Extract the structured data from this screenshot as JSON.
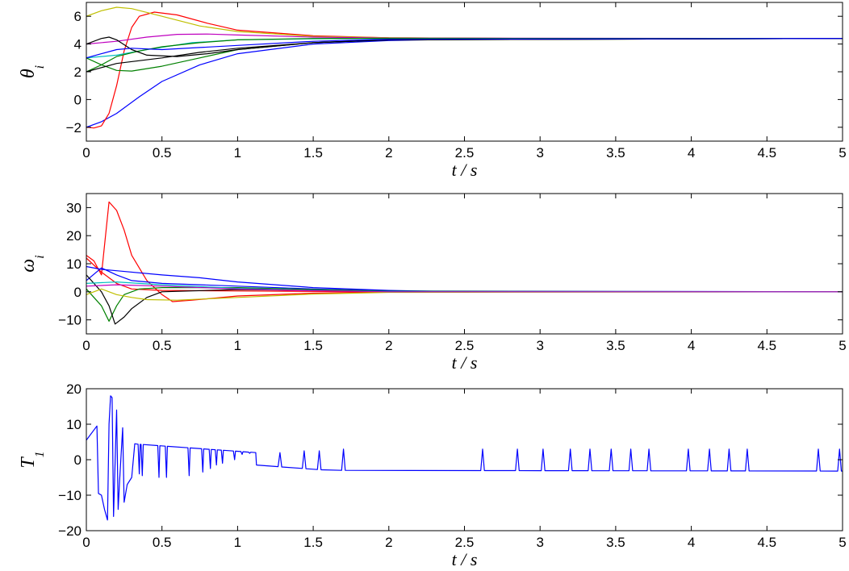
{
  "chart_data": [
    {
      "type": "line",
      "ylabel": "θ",
      "ylabel_subscript": "i",
      "xlabel": "t / s",
      "xlim": [
        0,
        5
      ],
      "ylim": [
        -3,
        7
      ],
      "xticks": [
        0,
        0.5,
        1,
        1.5,
        2,
        2.5,
        3,
        3.5,
        4,
        4.5,
        5
      ],
      "xticklabels": [
        "0",
        "0.5",
        "1",
        "1.5",
        "2",
        "2.5",
        "3",
        "3.5",
        "4",
        "4.5",
        "5"
      ],
      "yticks": [
        -2,
        0,
        2,
        4,
        6
      ],
      "yticklabels": [
        "−2",
        "0",
        "2",
        "4",
        "6"
      ],
      "grid": false,
      "series": [
        {
          "color": "#0000ff",
          "points": [
            [
              0,
              -2
            ],
            [
              0.1,
              -1.6
            ],
            [
              0.2,
              -1
            ],
            [
              0.35,
              0.2
            ],
            [
              0.5,
              1.3
            ],
            [
              0.75,
              2.5
            ],
            [
              1,
              3.3
            ],
            [
              1.5,
              4
            ],
            [
              2,
              4.25
            ],
            [
              2.5,
              4.35
            ],
            [
              3,
              4.38
            ],
            [
              5,
              4.4
            ]
          ]
        },
        {
          "color": "#ff0000",
          "points": [
            [
              0,
              -2
            ],
            [
              0.05,
              -2.05
            ],
            [
              0.1,
              -1.9
            ],
            [
              0.15,
              -1
            ],
            [
              0.2,
              1
            ],
            [
              0.25,
              3.5
            ],
            [
              0.3,
              5.2
            ],
            [
              0.35,
              6
            ],
            [
              0.45,
              6.3
            ],
            [
              0.6,
              6.1
            ],
            [
              0.8,
              5.5
            ],
            [
              1,
              5
            ],
            [
              1.5,
              4.6
            ],
            [
              2,
              4.45
            ],
            [
              3,
              4.4
            ],
            [
              5,
              4.4
            ]
          ]
        },
        {
          "color": "#bfbf00",
          "points": [
            [
              0,
              6
            ],
            [
              0.1,
              6.4
            ],
            [
              0.2,
              6.65
            ],
            [
              0.3,
              6.55
            ],
            [
              0.5,
              6
            ],
            [
              0.75,
              5.3
            ],
            [
              1,
              4.9
            ],
            [
              1.5,
              4.55
            ],
            [
              2,
              4.45
            ],
            [
              3,
              4.4
            ],
            [
              5,
              4.4
            ]
          ]
        },
        {
          "color": "#00bfbf",
          "points": [
            [
              0,
              3
            ],
            [
              0.2,
              3.2
            ],
            [
              0.4,
              3.6
            ],
            [
              0.7,
              4.1
            ],
            [
              1,
              4.3
            ],
            [
              1.5,
              4.38
            ],
            [
              2,
              4.4
            ],
            [
              5,
              4.4
            ]
          ]
        },
        {
          "color": "#bf00bf",
          "points": [
            [
              0,
              4
            ],
            [
              0.2,
              4.2
            ],
            [
              0.4,
              4.5
            ],
            [
              0.6,
              4.7
            ],
            [
              0.8,
              4.72
            ],
            [
              1,
              4.65
            ],
            [
              1.5,
              4.5
            ],
            [
              2,
              4.43
            ],
            [
              5,
              4.4
            ]
          ]
        },
        {
          "color": "#008000",
          "points": [
            [
              0,
              2
            ],
            [
              0.1,
              2.5
            ],
            [
              0.2,
              3.1
            ],
            [
              0.35,
              3.5
            ],
            [
              0.5,
              3.8
            ],
            [
              0.75,
              4.1
            ],
            [
              1,
              4.3
            ],
            [
              1.5,
              4.4
            ],
            [
              2,
              4.41
            ],
            [
              5,
              4.4
            ]
          ]
        },
        {
          "color": "#008000",
          "points": [
            [
              0,
              3
            ],
            [
              0.1,
              2.5
            ],
            [
              0.2,
              2.1
            ],
            [
              0.3,
              2.05
            ],
            [
              0.5,
              2.4
            ],
            [
              0.75,
              3
            ],
            [
              1,
              3.6
            ],
            [
              1.5,
              4.1
            ],
            [
              2,
              4.3
            ],
            [
              5,
              4.4
            ]
          ]
        },
        {
          "color": "#000000",
          "points": [
            [
              0,
              4
            ],
            [
              0.1,
              4.4
            ],
            [
              0.15,
              4.5
            ],
            [
              0.2,
              4.3
            ],
            [
              0.3,
              3.6
            ],
            [
              0.4,
              3.2
            ],
            [
              0.6,
              3.1
            ],
            [
              0.8,
              3.3
            ],
            [
              1,
              3.6
            ],
            [
              1.5,
              4.1
            ],
            [
              2,
              4.3
            ],
            [
              5,
              4.4
            ]
          ]
        },
        {
          "color": "#000000",
          "points": [
            [
              0,
              2
            ],
            [
              0.1,
              2.3
            ],
            [
              0.2,
              2.6
            ],
            [
              0.5,
              3
            ],
            [
              0.75,
              3.4
            ],
            [
              1,
              3.7
            ],
            [
              1.5,
              4.1
            ],
            [
              2,
              4.3
            ],
            [
              5,
              4.4
            ]
          ]
        },
        {
          "color": "#0000ff",
          "points": [
            [
              0,
              3
            ],
            [
              0.1,
              3.3
            ],
            [
              0.2,
              3.6
            ],
            [
              0.3,
              3.7
            ],
            [
              0.5,
              3.6
            ],
            [
              0.75,
              3.75
            ],
            [
              1,
              3.9
            ],
            [
              1.5,
              4.2
            ],
            [
              2,
              4.35
            ],
            [
              5,
              4.4
            ]
          ]
        }
      ]
    },
    {
      "type": "line",
      "ylabel": "ω",
      "ylabel_subscript": "i",
      "xlabel": "t / s",
      "xlim": [
        0,
        5
      ],
      "ylim": [
        -15,
        35
      ],
      "xticks": [
        0,
        0.5,
        1,
        1.5,
        2,
        2.5,
        3,
        3.5,
        4,
        4.5,
        5
      ],
      "xticklabels": [
        "0",
        "0.5",
        "1",
        "1.5",
        "2",
        "2.5",
        "3",
        "3.5",
        "4",
        "4.5",
        "5"
      ],
      "yticks": [
        -10,
        0,
        10,
        20,
        30
      ],
      "yticklabels": [
        "−10",
        "0",
        "10",
        "20",
        "30"
      ],
      "grid": false,
      "series": [
        {
          "color": "#ff0000",
          "points": [
            [
              0,
              13
            ],
            [
              0.05,
              11
            ],
            [
              0.1,
              6
            ],
            [
              0.15,
              32
            ],
            [
              0.2,
              29
            ],
            [
              0.25,
              22
            ],
            [
              0.3,
              13
            ],
            [
              0.4,
              4
            ],
            [
              0.5,
              -1
            ],
            [
              0.57,
              -3.5
            ],
            [
              0.7,
              -3
            ],
            [
              1,
              -1.5
            ],
            [
              1.5,
              -0.5
            ],
            [
              2,
              0
            ],
            [
              5,
              0
            ]
          ]
        },
        {
          "color": "#ff0000",
          "points": [
            [
              0,
              12
            ],
            [
              0.1,
              7
            ],
            [
              0.2,
              3
            ],
            [
              0.3,
              1
            ],
            [
              0.5,
              0.5
            ],
            [
              1,
              0.3
            ],
            [
              2,
              0
            ],
            [
              5,
              0
            ]
          ]
        },
        {
          "color": "#0000ff",
          "points": [
            [
              0,
              9
            ],
            [
              0.1,
              8
            ],
            [
              0.2,
              7.5
            ],
            [
              0.5,
              6
            ],
            [
              0.75,
              5
            ],
            [
              1,
              3.5
            ],
            [
              1.5,
              1.5
            ],
            [
              2,
              0.5
            ],
            [
              2.5,
              0
            ],
            [
              5,
              0
            ]
          ]
        },
        {
          "color": "#0000ff",
          "points": [
            [
              0,
              4
            ],
            [
              0.1,
              8.5
            ],
            [
              0.2,
              6
            ],
            [
              0.3,
              4
            ],
            [
              0.5,
              3
            ],
            [
              1,
              2
            ],
            [
              1.5,
              1
            ],
            [
              2,
              0.3
            ],
            [
              5,
              0
            ]
          ]
        },
        {
          "color": "#008000",
          "points": [
            [
              0,
              1
            ],
            [
              0.1,
              -5
            ],
            [
              0.15,
              -10.5
            ],
            [
              0.2,
              -5
            ],
            [
              0.25,
              -1
            ],
            [
              0.35,
              1
            ],
            [
              0.5,
              1.5
            ],
            [
              1,
              1.5
            ],
            [
              1.5,
              0.8
            ],
            [
              2,
              0.2
            ],
            [
              5,
              0
            ]
          ]
        },
        {
          "color": "#000000",
          "points": [
            [
              0,
              6
            ],
            [
              0.1,
              0
            ],
            [
              0.15,
              -5
            ],
            [
              0.19,
              -11.5
            ],
            [
              0.25,
              -9
            ],
            [
              0.3,
              -6
            ],
            [
              0.4,
              -2
            ],
            [
              0.5,
              0
            ],
            [
              1,
              0.8
            ],
            [
              1.5,
              0.5
            ],
            [
              2,
              0.1
            ],
            [
              5,
              0
            ]
          ]
        },
        {
          "color": "#bfbf00",
          "points": [
            [
              0,
              -1
            ],
            [
              0.1,
              1
            ],
            [
              0.2,
              -1
            ],
            [
              0.3,
              -2
            ],
            [
              0.4,
              -2.8
            ],
            [
              0.6,
              -3
            ],
            [
              1,
              -2
            ],
            [
              1.5,
              -0.8
            ],
            [
              2,
              -0.2
            ],
            [
              5,
              0
            ]
          ]
        },
        {
          "color": "#00bfbf",
          "points": [
            [
              0,
              3
            ],
            [
              0.2,
              3.5
            ],
            [
              0.5,
              2.5
            ],
            [
              1,
              1.2
            ],
            [
              1.5,
              0.5
            ],
            [
              2,
              0.1
            ],
            [
              5,
              0
            ]
          ]
        },
        {
          "color": "#bf00bf",
          "points": [
            [
              0,
              2
            ],
            [
              0.2,
              2.5
            ],
            [
              0.5,
              2
            ],
            [
              1,
              1
            ],
            [
              1.5,
              0.4
            ],
            [
              2,
              0
            ],
            [
              5,
              0
            ]
          ]
        }
      ]
    },
    {
      "type": "line",
      "ylabel": "T",
      "ylabel_subscript": "1",
      "xlabel": "t / s",
      "xlim": [
        0,
        5
      ],
      "ylim": [
        -20,
        20
      ],
      "xticks": [
        0,
        0.5,
        1,
        1.5,
        2,
        2.5,
        3,
        3.5,
        4,
        4.5,
        5
      ],
      "xticklabels": [
        "0",
        "0.5",
        "1",
        "1.5",
        "2",
        "2.5",
        "3",
        "3.5",
        "4",
        "4.5",
        "5"
      ],
      "yticks": [
        -20,
        -10,
        0,
        10,
        20
      ],
      "yticklabels": [
        "−20",
        "−10",
        "0",
        "10",
        "20"
      ],
      "grid": false,
      "baseline_segments": [
        {
          "from": 0,
          "to": 0.07,
          "y_start": 5.5,
          "y_end": 9.5
        },
        {
          "from": 0.3,
          "to": 1.12,
          "y_start": 4.5,
          "y_end": 2
        },
        {
          "from": 1.12,
          "to": 1.6,
          "y_start": -1.5,
          "y_end": -3
        },
        {
          "from": 1.6,
          "to": 5,
          "y_start": -3,
          "y_end": -3.2
        }
      ],
      "early_points": [
        [
          0.07,
          9.5
        ],
        [
          0.08,
          -9.5
        ],
        [
          0.1,
          -10
        ],
        [
          0.12,
          -14
        ],
        [
          0.14,
          -17
        ],
        [
          0.15,
          10
        ],
        [
          0.16,
          18
        ],
        [
          0.17,
          17.5
        ],
        [
          0.18,
          -16
        ],
        [
          0.2,
          14
        ],
        [
          0.21,
          -14
        ],
        [
          0.22,
          -6
        ],
        [
          0.24,
          9
        ],
        [
          0.25,
          -12
        ],
        [
          0.27,
          -7
        ],
        [
          0.3,
          -5
        ],
        [
          0.32,
          4.5
        ]
      ],
      "dips": [
        [
          0.35,
          -4
        ],
        [
          0.37,
          -4.5
        ],
        [
          0.48,
          -5
        ],
        [
          0.53,
          -5
        ],
        [
          0.68,
          -4.5
        ],
        [
          0.77,
          -3.5
        ],
        [
          0.82,
          -2.5
        ],
        [
          0.86,
          -1.5
        ],
        [
          0.9,
          -1
        ],
        [
          0.98,
          0
        ],
        [
          1.03,
          1.5
        ],
        [
          1.08,
          1.8
        ]
      ],
      "spikes": [
        [
          1.28,
          2
        ],
        [
          1.44,
          2.5
        ],
        [
          1.54,
          2.5
        ],
        [
          1.7,
          3
        ],
        [
          2.62,
          3
        ],
        [
          2.85,
          3
        ],
        [
          3.02,
          3
        ],
        [
          3.2,
          3
        ],
        [
          3.33,
          3
        ],
        [
          3.47,
          3
        ],
        [
          3.6,
          3
        ],
        [
          3.72,
          3
        ],
        [
          3.98,
          3
        ],
        [
          4.12,
          3
        ],
        [
          4.25,
          3
        ],
        [
          4.37,
          3
        ],
        [
          4.84,
          3
        ],
        [
          4.98,
          3
        ]
      ],
      "series": [
        {
          "color": "#0000ff",
          "points": []
        }
      ]
    }
  ]
}
